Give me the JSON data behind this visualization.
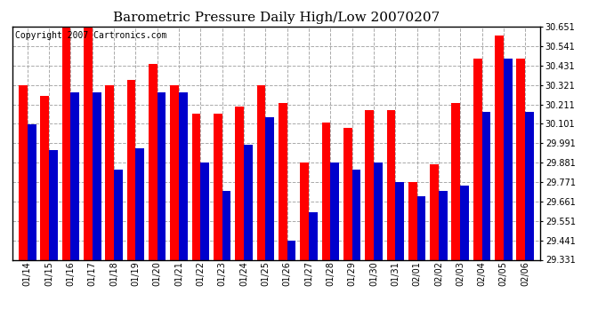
{
  "title": "Barometric Pressure Daily High/Low 20070207",
  "copyright": "Copyright 2007 Cartronics.com",
  "categories": [
    "01/14",
    "01/15",
    "01/16",
    "01/17",
    "01/18",
    "01/19",
    "01/20",
    "01/21",
    "01/22",
    "01/23",
    "01/24",
    "01/25",
    "01/26",
    "01/27",
    "01/28",
    "01/29",
    "01/30",
    "01/31",
    "02/01",
    "02/02",
    "02/03",
    "02/04",
    "02/05",
    "02/06"
  ],
  "highs": [
    30.32,
    30.26,
    30.65,
    30.65,
    30.32,
    30.35,
    30.44,
    30.32,
    30.16,
    30.16,
    30.2,
    30.32,
    30.22,
    29.88,
    30.11,
    30.08,
    30.18,
    30.18,
    29.77,
    29.87,
    30.22,
    30.47,
    30.6,
    30.47
  ],
  "lows": [
    30.1,
    29.95,
    30.28,
    30.28,
    29.84,
    29.96,
    30.28,
    30.28,
    29.88,
    29.72,
    29.98,
    30.14,
    29.44,
    29.6,
    29.88,
    29.84,
    29.88,
    29.77,
    29.69,
    29.72,
    29.75,
    30.17,
    30.47,
    30.17
  ],
  "high_color": "#ff0000",
  "low_color": "#0000cc",
  "ylim_min": 29.331,
  "ylim_max": 30.651,
  "yticks": [
    29.331,
    29.441,
    29.551,
    29.661,
    29.771,
    29.881,
    29.991,
    30.101,
    30.211,
    30.321,
    30.431,
    30.541,
    30.651
  ],
  "background_color": "#ffffff",
  "plot_bg_color": "#ffffff",
  "grid_color": "#aaaaaa",
  "title_fontsize": 11,
  "copyright_fontsize": 7,
  "tick_fontsize": 7
}
